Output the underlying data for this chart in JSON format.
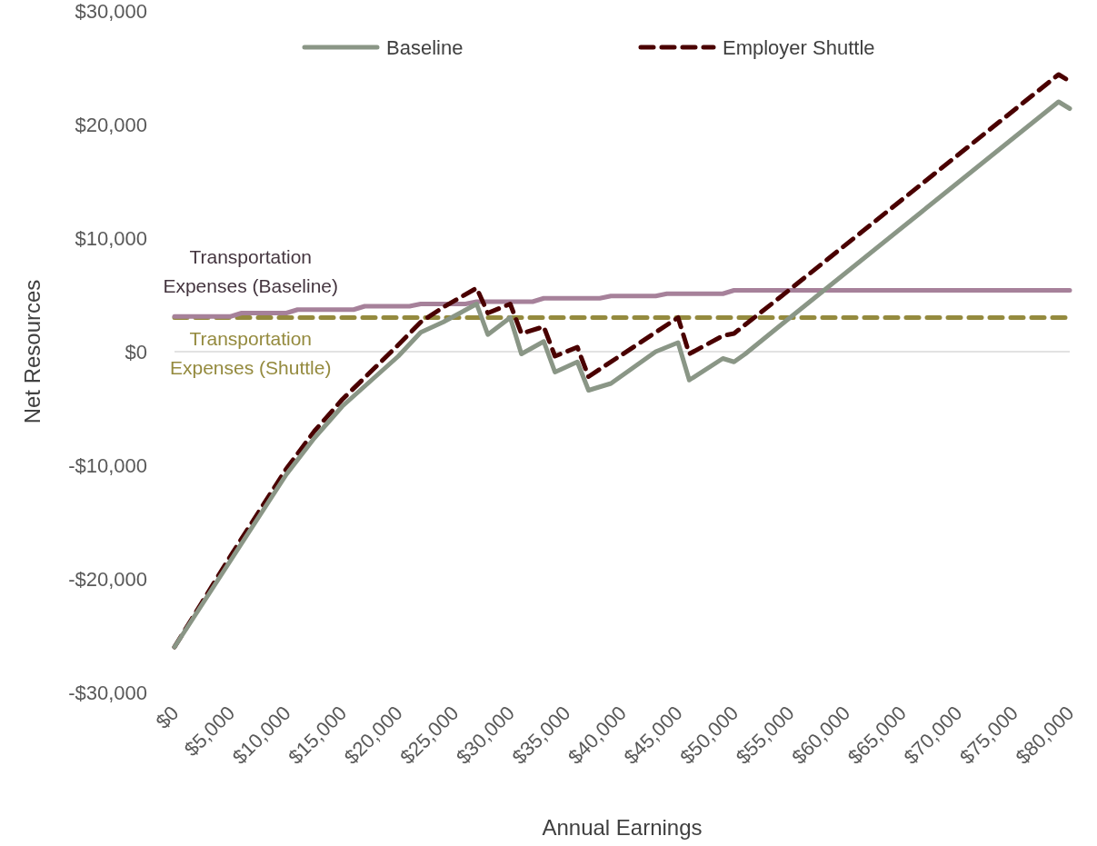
{
  "chart_data": {
    "type": "line",
    "xlabel": "Annual Earnings",
    "ylabel": "Net Resources",
    "xlim": [
      0,
      80000
    ],
    "ylim": [
      -30000,
      30000
    ],
    "xticks": [
      {
        "value": 0,
        "label": "$0"
      },
      {
        "value": 5000,
        "label": "$5,000"
      },
      {
        "value": 10000,
        "label": "$10,000"
      },
      {
        "value": 15000,
        "label": "$15,000"
      },
      {
        "value": 20000,
        "label": "$20,000"
      },
      {
        "value": 25000,
        "label": "$25,000"
      },
      {
        "value": 30000,
        "label": "$30,000"
      },
      {
        "value": 35000,
        "label": "$35,000"
      },
      {
        "value": 40000,
        "label": "$40,000"
      },
      {
        "value": 45000,
        "label": "$45,000"
      },
      {
        "value": 50000,
        "label": "$50,000"
      },
      {
        "value": 55000,
        "label": "$55,000"
      },
      {
        "value": 60000,
        "label": "$60,000"
      },
      {
        "value": 65000,
        "label": "$65,000"
      },
      {
        "value": 70000,
        "label": "$70,000"
      },
      {
        "value": 75000,
        "label": "$75,000"
      },
      {
        "value": 80000,
        "label": "$80,000"
      }
    ],
    "yticks": [
      {
        "value": -30000,
        "label": "-$30,000"
      },
      {
        "value": -20000,
        "label": "-$20,000"
      },
      {
        "value": -10000,
        "label": "-$10,000"
      },
      {
        "value": 0,
        "label": "$0"
      },
      {
        "value": 10000,
        "label": "$10,000"
      },
      {
        "value": 20000,
        "label": "$20,000"
      },
      {
        "value": 30000,
        "label": "$30,000"
      }
    ],
    "grid": false,
    "legend": "top",
    "ref_lines": [
      {
        "axis": "y",
        "value": 0,
        "color": "#d9d9d9"
      }
    ],
    "series": [
      {
        "name": "Baseline",
        "color": "#8a9686",
        "line_style": "solid",
        "x": [
          0,
          2500,
          5000,
          10000,
          12500,
          15000,
          20000,
          22000,
          24000,
          27000,
          28000,
          30000,
          31000,
          33000,
          34000,
          36000,
          37000,
          39000,
          43000,
          45000,
          46000,
          49000,
          50000,
          51000,
          54000,
          79000,
          80000
        ],
        "values": [
          -26000,
          -22200,
          -18400,
          -10800,
          -7600,
          -4800,
          -400,
          1700,
          2600,
          4200,
          1500,
          3000,
          -200,
          900,
          -1800,
          -900,
          -3400,
          -2800,
          0,
          800,
          -2500,
          -600,
          -900,
          -200,
          2200,
          22000,
          21400
        ]
      },
      {
        "name": "Employer Shuttle",
        "color": "#4a0000",
        "line_style": "dashed",
        "x": [
          0,
          2500,
          5000,
          10000,
          12500,
          15000,
          20000,
          22000,
          24000,
          27000,
          28000,
          30000,
          31000,
          33000,
          34000,
          36000,
          37000,
          45000,
          46000,
          49000,
          50000,
          54000,
          79000,
          80000
        ],
        "values": [
          -26000,
          -22000,
          -18000,
          -10300,
          -7000,
          -4200,
          600,
          2600,
          3900,
          5600,
          3400,
          4200,
          1600,
          2200,
          -400,
          400,
          -2200,
          3000,
          -200,
          1400,
          1600,
          4700,
          24400,
          23800
        ]
      },
      {
        "name": "Transportation Expenses (Baseline)",
        "color": "#a6819a",
        "line_style": "solid",
        "x": [
          0,
          5000,
          6000,
          10000,
          11000,
          16000,
          17000,
          21000,
          22000,
          26000,
          27000,
          32000,
          33000,
          38000,
          39000,
          43000,
          44000,
          49000,
          50000,
          80000
        ],
        "values": [
          3100,
          3100,
          3400,
          3400,
          3700,
          3700,
          4000,
          4000,
          4200,
          4200,
          4400,
          4400,
          4700,
          4700,
          4900,
          4900,
          5100,
          5100,
          5400,
          5400
        ]
      },
      {
        "name": "Transportation Expenses (Shuttle)",
        "color": "#948a3e",
        "line_style": "dashed",
        "x": [
          0,
          80000
        ],
        "values": [
          3000,
          3000
        ]
      }
    ]
  }
}
